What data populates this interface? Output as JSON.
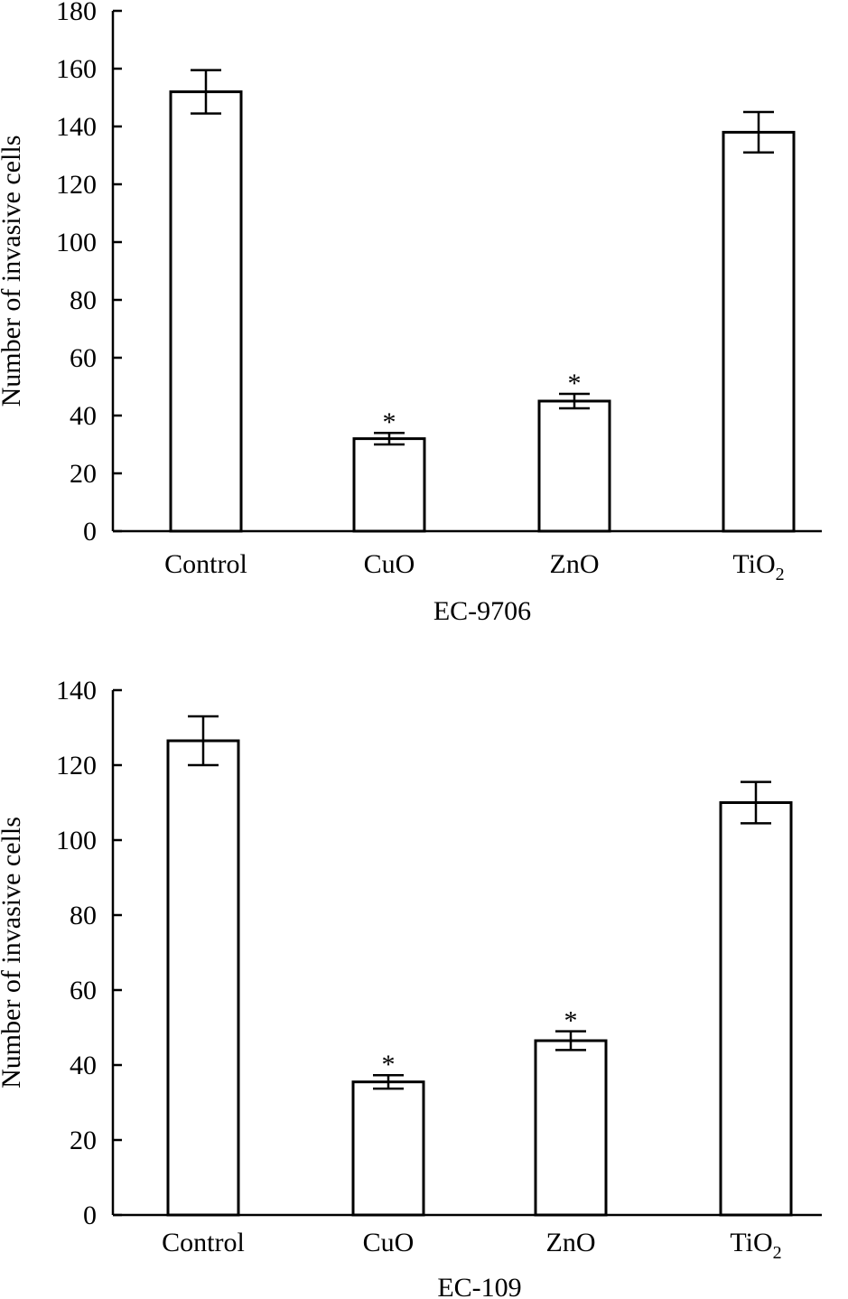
{
  "chart_data": [
    {
      "type": "bar",
      "categories": [
        "Control",
        "CuO",
        "ZnO",
        "TiO2"
      ],
      "values": [
        152,
        32,
        45,
        138
      ],
      "errors": [
        7.5,
        2,
        2.5,
        7
      ],
      "significance": [
        "",
        "*",
        "*",
        ""
      ],
      "title": "",
      "xlabel": "EC-9706",
      "ylabel": "Number of invasive cells",
      "ylim": [
        0,
        180
      ],
      "yticks": [
        0,
        20,
        40,
        60,
        80,
        100,
        120,
        140,
        160,
        180
      ],
      "grid": false
    },
    {
      "type": "bar",
      "categories": [
        "Control",
        "CuO",
        "ZnO",
        "TiO2"
      ],
      "values": [
        126.5,
        35.5,
        46.5,
        110
      ],
      "errors": [
        6.5,
        1.8,
        2.5,
        5.5
      ],
      "significance": [
        "",
        "*",
        "*",
        ""
      ],
      "title": "",
      "xlabel": "EC-109",
      "ylabel": "Number of invasive cells",
      "ylim": [
        0,
        140
      ],
      "yticks": [
        0,
        20,
        40,
        60,
        80,
        100,
        120,
        140
      ],
      "grid": false
    }
  ]
}
